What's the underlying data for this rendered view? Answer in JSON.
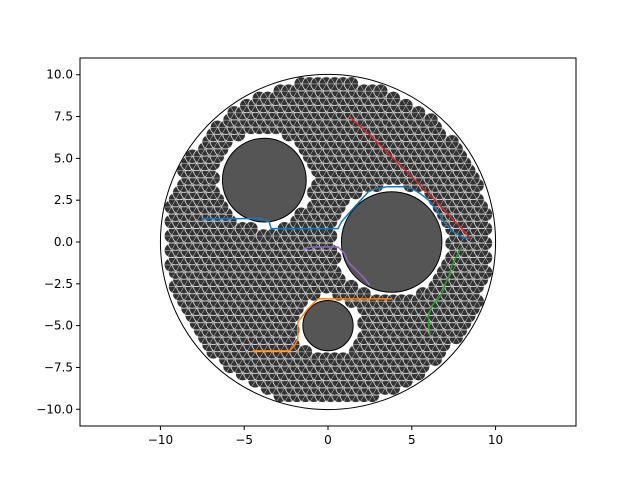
{
  "chart_data": {
    "type": "line",
    "title": "",
    "xlabel": "",
    "ylabel": "",
    "xlim": [
      -14.8,
      14.8
    ],
    "ylim": [
      -11.0,
      11.0
    ],
    "grid": false,
    "legend": "none",
    "aspect": "equal",
    "x_ticks": [
      -10,
      -5,
      0,
      5,
      10
    ],
    "x_tick_labels": [
      "−10",
      "−5",
      "0",
      "5",
      "10"
    ],
    "y_ticks": [
      10.0,
      7.5,
      5.0,
      2.5,
      0.0,
      -2.5,
      -5.0,
      -7.5,
      -10.0
    ],
    "y_tick_labels": [
      "10.0",
      "7.5",
      "5.0",
      "2.5",
      "0.0",
      "−2.5",
      "−5.0",
      "−7.5",
      "−10.0"
    ],
    "boundary_circle": {
      "cx": 0,
      "cy": 0,
      "r": 10,
      "color": "#000000"
    },
    "obstacles": [
      {
        "cx": -3.8,
        "cy": 3.7,
        "r": 2.5,
        "color": "#555555"
      },
      {
        "cx": 3.8,
        "cy": 0.0,
        "r": 3.0,
        "color": "#555555"
      },
      {
        "cx": 0.0,
        "cy": -5.0,
        "r": 1.5,
        "color": "#555555"
      }
    ],
    "lattice": {
      "region_radius": 9.6,
      "spacing": 0.5,
      "cell_radius": 0.42,
      "cell_color": "#333333",
      "line_color": "#ffffff",
      "obstacle_clearance": 0.5
    },
    "series": [
      {
        "color": "#1f77b4",
        "x": [
          -7.5,
          -7.5,
          -4.0,
          -3.8,
          -3.5,
          -3.4,
          -2.0,
          0.0,
          0.6,
          0.8,
          1.5,
          2.5,
          3.5,
          4.5,
          5.0,
          5.5,
          6.0,
          6.5,
          7.0,
          7.5,
          8.0,
          8.4
        ],
        "y": [
          1.3,
          1.4,
          1.4,
          1.3,
          1.2,
          0.8,
          0.8,
          0.8,
          0.8,
          1.2,
          2.0,
          3.1,
          3.3,
          3.3,
          3.2,
          2.9,
          2.5,
          1.9,
          1.1,
          0.6,
          0.3,
          0.2
        ]
      },
      {
        "color": "#ff7f0e",
        "x": [
          -4.5,
          -3.5,
          -2.3,
          -2.0,
          -1.8,
          -1.8,
          -1.5,
          -1.2,
          -0.9,
          -0.6,
          0.5,
          1.8,
          2.9,
          3.3,
          3.8
        ],
        "y": [
          -6.5,
          -6.5,
          -6.5,
          -6.2,
          -5.8,
          -4.8,
          -4.4,
          -4.0,
          -3.7,
          -3.4,
          -3.4,
          -3.4,
          -3.4,
          -3.4,
          -3.4
        ]
      },
      {
        "color": "#2ca02c",
        "x": [
          8.0,
          7.7,
          7.4,
          7.2,
          7.0,
          6.8,
          6.5,
          6.2,
          6.0,
          6.0,
          6.1
        ],
        "y": [
          -0.3,
          -0.8,
          -1.4,
          -2.1,
          -2.5,
          -3.1,
          -3.5,
          -3.8,
          -4.4,
          -5.0,
          -5.6
        ]
      },
      {
        "color": "#d62728",
        "x": [
          1.3,
          1.6,
          2.5,
          3.5,
          4.5,
          5.5,
          6.5,
          7.5,
          8.0,
          8.5
        ],
        "y": [
          7.5,
          7.2,
          6.4,
          5.4,
          4.4,
          3.4,
          2.4,
          1.3,
          0.8,
          0.2
        ]
      },
      {
        "color": "#9467bd",
        "x": [
          -1.5,
          -1.0,
          0.6,
          1.0,
          1.2,
          1.8,
          2.2,
          2.5
        ],
        "y": [
          -0.4,
          -0.3,
          -0.3,
          -0.7,
          -1.2,
          -1.8,
          -2.2,
          -2.6
        ]
      }
    ]
  }
}
